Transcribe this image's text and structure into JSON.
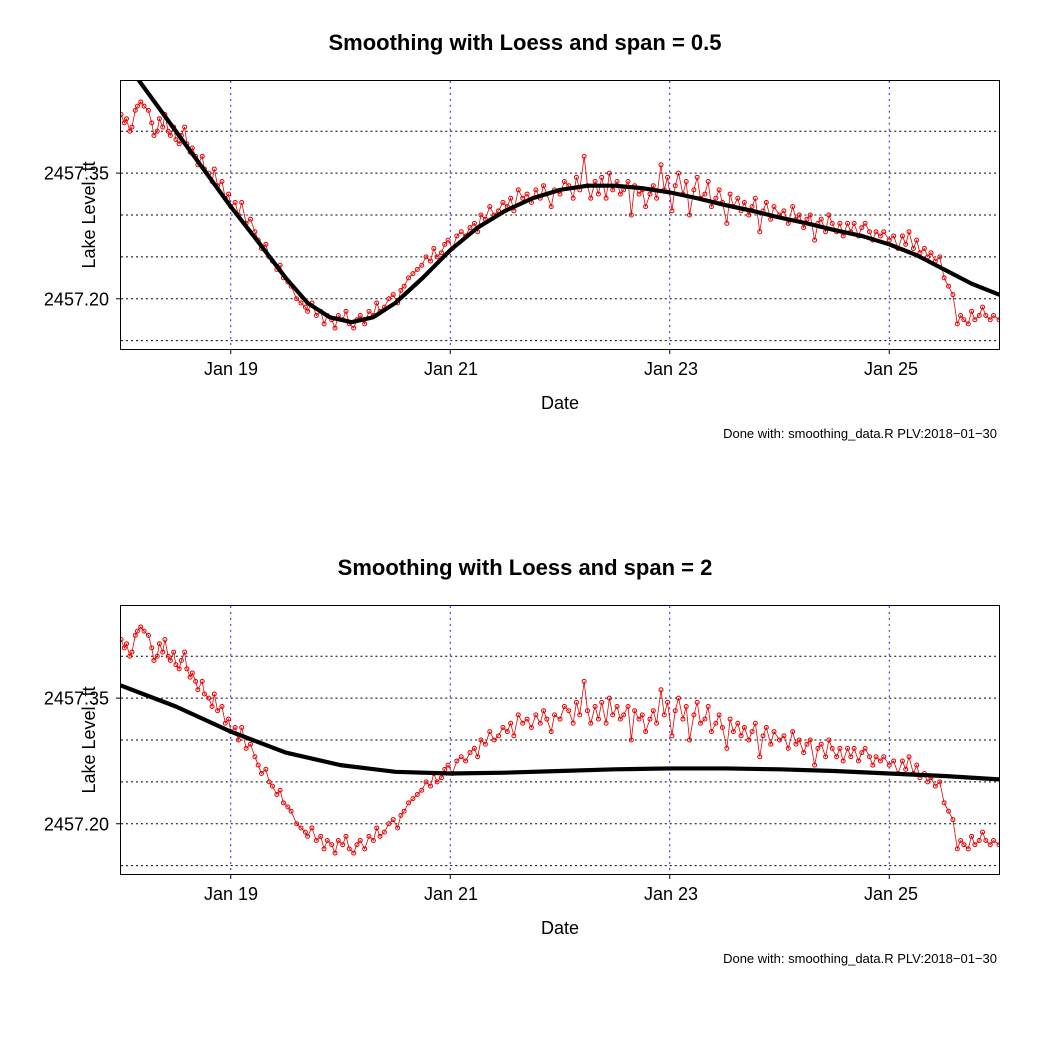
{
  "panels": [
    {
      "title": "Smoothing with Loess and span = 0.5",
      "ylabel": "Lake Level, ft",
      "xlabel": "Date",
      "caption": "Done with: smoothing_data.R   PLV:2018−01−30",
      "smooth_key": "smooth05"
    },
    {
      "title": "Smoothing with Loess and span = 2",
      "ylabel": "Lake Level, ft",
      "xlabel": "Date",
      "caption": "Done with: smoothing_data.R   PLV:2018−01−30",
      "smooth_key": "smooth2"
    }
  ],
  "style": {
    "frame_color": "#000000",
    "background": "#ffffff",
    "hgrid_color": "#000000",
    "hgrid_dash": "2 3",
    "hgrid_width": 0.9,
    "vgrid_color": "#0000ff",
    "vgrid_dash": "2 4",
    "vgrid_width": 0.9,
    "point_stroke": "#e60000",
    "point_fill": "none",
    "point_radius": 2.0,
    "point_stroke_width": 1.0,
    "connector_color": "#e60000",
    "connector_width": 0.8,
    "smooth_color": "#000000",
    "smooth_width": 4.2,
    "tick_len": 5,
    "title_fontsize": 22,
    "label_fontsize": 18,
    "tick_fontsize": 18,
    "caption_fontsize": 13
  },
  "axes": {
    "x_min": 18.0,
    "x_max": 26.0,
    "x_ticks": [
      19,
      21,
      23,
      25
    ],
    "x_tick_labels": [
      "Jan 19",
      "Jan 21",
      "Jan 23",
      "Jan 25"
    ],
    "y_min": 2457.14,
    "y_max": 2457.46,
    "y_ticks": [
      2457.2,
      2457.35
    ],
    "y_tick_labels": [
      "2457.20",
      "2457.35"
    ],
    "y_hgrid": [
      2457.15,
      2457.2,
      2457.25,
      2457.3,
      2457.35,
      2457.4
    ]
  },
  "data": {
    "scatter": [
      [
        18.0,
        2457.42
      ],
      [
        18.03,
        2457.41
      ],
      [
        18.05,
        2457.415
      ],
      [
        18.08,
        2457.4
      ],
      [
        18.1,
        2457.405
      ],
      [
        18.13,
        2457.425
      ],
      [
        18.15,
        2457.43
      ],
      [
        18.18,
        2457.435
      ],
      [
        18.21,
        2457.43
      ],
      [
        18.25,
        2457.425
      ],
      [
        18.28,
        2457.41
      ],
      [
        18.3,
        2457.395
      ],
      [
        18.33,
        2457.4
      ],
      [
        18.35,
        2457.415
      ],
      [
        18.38,
        2457.405
      ],
      [
        18.4,
        2457.42
      ],
      [
        18.43,
        2457.4
      ],
      [
        18.45,
        2457.395
      ],
      [
        18.48,
        2457.405
      ],
      [
        18.5,
        2457.39
      ],
      [
        18.53,
        2457.385
      ],
      [
        18.55,
        2457.395
      ],
      [
        18.58,
        2457.405
      ],
      [
        18.6,
        2457.385
      ],
      [
        18.63,
        2457.375
      ],
      [
        18.65,
        2457.38
      ],
      [
        18.68,
        2457.37
      ],
      [
        18.7,
        2457.36
      ],
      [
        18.74,
        2457.37
      ],
      [
        18.76,
        2457.355
      ],
      [
        18.8,
        2457.35
      ],
      [
        18.83,
        2457.34
      ],
      [
        18.85,
        2457.355
      ],
      [
        18.88,
        2457.335
      ],
      [
        18.92,
        2457.34
      ],
      [
        18.95,
        2457.32
      ],
      [
        18.98,
        2457.325
      ],
      [
        19.0,
        2457.31
      ],
      [
        19.04,
        2457.315
      ],
      [
        19.07,
        2457.3
      ],
      [
        19.1,
        2457.315
      ],
      [
        19.14,
        2457.29
      ],
      [
        19.18,
        2457.295
      ],
      [
        19.22,
        2457.28
      ],
      [
        19.25,
        2457.27
      ],
      [
        19.28,
        2457.26
      ],
      [
        19.32,
        2457.265
      ],
      [
        19.35,
        2457.25
      ],
      [
        19.38,
        2457.245
      ],
      [
        19.42,
        2457.235
      ],
      [
        19.45,
        2457.24
      ],
      [
        19.48,
        2457.225
      ],
      [
        19.52,
        2457.22
      ],
      [
        19.55,
        2457.215
      ],
      [
        19.6,
        2457.2
      ],
      [
        19.64,
        2457.195
      ],
      [
        19.68,
        2457.19
      ],
      [
        19.7,
        2457.185
      ],
      [
        19.74,
        2457.195
      ],
      [
        19.78,
        2457.18
      ],
      [
        19.82,
        2457.185
      ],
      [
        19.85,
        2457.17
      ],
      [
        19.88,
        2457.18
      ],
      [
        19.92,
        2457.175
      ],
      [
        19.95,
        2457.165
      ],
      [
        19.98,
        2457.18
      ],
      [
        20.02,
        2457.175
      ],
      [
        20.05,
        2457.185
      ],
      [
        20.08,
        2457.17
      ],
      [
        20.12,
        2457.165
      ],
      [
        20.15,
        2457.175
      ],
      [
        20.18,
        2457.18
      ],
      [
        20.22,
        2457.17
      ],
      [
        20.26,
        2457.185
      ],
      [
        20.3,
        2457.18
      ],
      [
        20.33,
        2457.195
      ],
      [
        20.36,
        2457.185
      ],
      [
        20.4,
        2457.19
      ],
      [
        20.44,
        2457.2
      ],
      [
        20.48,
        2457.205
      ],
      [
        20.52,
        2457.195
      ],
      [
        20.55,
        2457.21
      ],
      [
        20.58,
        2457.215
      ],
      [
        20.62,
        2457.225
      ],
      [
        20.66,
        2457.23
      ],
      [
        20.7,
        2457.235
      ],
      [
        20.74,
        2457.24
      ],
      [
        20.78,
        2457.25
      ],
      [
        20.82,
        2457.245
      ],
      [
        20.85,
        2457.26
      ],
      [
        20.88,
        2457.25
      ],
      [
        20.92,
        2457.255
      ],
      [
        20.95,
        2457.265
      ],
      [
        20.98,
        2457.27
      ],
      [
        21.02,
        2457.26
      ],
      [
        21.06,
        2457.275
      ],
      [
        21.1,
        2457.28
      ],
      [
        21.14,
        2457.275
      ],
      [
        21.18,
        2457.285
      ],
      [
        21.22,
        2457.29
      ],
      [
        21.25,
        2457.28
      ],
      [
        21.28,
        2457.3
      ],
      [
        21.32,
        2457.295
      ],
      [
        21.36,
        2457.31
      ],
      [
        21.4,
        2457.3
      ],
      [
        21.44,
        2457.305
      ],
      [
        21.48,
        2457.315
      ],
      [
        21.52,
        2457.31
      ],
      [
        21.55,
        2457.32
      ],
      [
        21.58,
        2457.305
      ],
      [
        21.62,
        2457.33
      ],
      [
        21.66,
        2457.32
      ],
      [
        21.7,
        2457.325
      ],
      [
        21.74,
        2457.315
      ],
      [
        21.78,
        2457.33
      ],
      [
        21.82,
        2457.32
      ],
      [
        21.85,
        2457.335
      ],
      [
        21.88,
        2457.325
      ],
      [
        21.92,
        2457.31
      ],
      [
        21.95,
        2457.33
      ],
      [
        22.0,
        2457.325
      ],
      [
        22.04,
        2457.34
      ],
      [
        22.08,
        2457.335
      ],
      [
        22.12,
        2457.32
      ],
      [
        22.15,
        2457.345
      ],
      [
        22.18,
        2457.33
      ],
      [
        22.22,
        2457.37
      ],
      [
        22.25,
        2457.335
      ],
      [
        22.28,
        2457.32
      ],
      [
        22.32,
        2457.34
      ],
      [
        22.35,
        2457.325
      ],
      [
        22.38,
        2457.345
      ],
      [
        22.42,
        2457.32
      ],
      [
        22.45,
        2457.35
      ],
      [
        22.48,
        2457.33
      ],
      [
        22.52,
        2457.34
      ],
      [
        22.55,
        2457.325
      ],
      [
        22.58,
        2457.33
      ],
      [
        22.62,
        2457.34
      ],
      [
        22.65,
        2457.3
      ],
      [
        22.68,
        2457.335
      ],
      [
        22.72,
        2457.325
      ],
      [
        22.75,
        2457.33
      ],
      [
        22.78,
        2457.31
      ],
      [
        22.82,
        2457.325
      ],
      [
        22.85,
        2457.335
      ],
      [
        22.88,
        2457.32
      ],
      [
        22.92,
        2457.36
      ],
      [
        22.95,
        2457.33
      ],
      [
        22.98,
        2457.345
      ],
      [
        23.02,
        2457.305
      ],
      [
        23.05,
        2457.335
      ],
      [
        23.08,
        2457.35
      ],
      [
        23.12,
        2457.325
      ],
      [
        23.15,
        2457.34
      ],
      [
        23.18,
        2457.3
      ],
      [
        23.22,
        2457.33
      ],
      [
        23.25,
        2457.345
      ],
      [
        23.28,
        2457.32
      ],
      [
        23.32,
        2457.325
      ],
      [
        23.35,
        2457.34
      ],
      [
        23.38,
        2457.31
      ],
      [
        23.42,
        2457.32
      ],
      [
        23.45,
        2457.33
      ],
      [
        23.48,
        2457.315
      ],
      [
        23.52,
        2457.29
      ],
      [
        23.55,
        2457.325
      ],
      [
        23.58,
        2457.31
      ],
      [
        23.62,
        2457.32
      ],
      [
        23.65,
        2457.305
      ],
      [
        23.68,
        2457.315
      ],
      [
        23.72,
        2457.3
      ],
      [
        23.75,
        2457.31
      ],
      [
        23.78,
        2457.32
      ],
      [
        23.82,
        2457.28
      ],
      [
        23.85,
        2457.305
      ],
      [
        23.88,
        2457.315
      ],
      [
        23.92,
        2457.295
      ],
      [
        23.95,
        2457.31
      ],
      [
        24.0,
        2457.3
      ],
      [
        24.04,
        2457.305
      ],
      [
        24.08,
        2457.29
      ],
      [
        24.12,
        2457.31
      ],
      [
        24.15,
        2457.295
      ],
      [
        24.18,
        2457.3
      ],
      [
        24.22,
        2457.285
      ],
      [
        24.25,
        2457.295
      ],
      [
        24.28,
        2457.3
      ],
      [
        24.32,
        2457.27
      ],
      [
        24.35,
        2457.29
      ],
      [
        24.38,
        2457.295
      ],
      [
        24.42,
        2457.28
      ],
      [
        24.45,
        2457.3
      ],
      [
        24.48,
        2457.29
      ],
      [
        24.52,
        2457.28
      ],
      [
        24.55,
        2457.29
      ],
      [
        24.58,
        2457.275
      ],
      [
        24.62,
        2457.29
      ],
      [
        24.65,
        2457.28
      ],
      [
        24.68,
        2457.29
      ],
      [
        24.72,
        2457.275
      ],
      [
        24.75,
        2457.285
      ],
      [
        24.78,
        2457.29
      ],
      [
        24.82,
        2457.28
      ],
      [
        24.85,
        2457.27
      ],
      [
        24.88,
        2457.28
      ],
      [
        24.92,
        2457.275
      ],
      [
        24.95,
        2457.28
      ],
      [
        25.0,
        2457.27
      ],
      [
        25.04,
        2457.275
      ],
      [
        25.08,
        2457.26
      ],
      [
        25.12,
        2457.275
      ],
      [
        25.15,
        2457.265
      ],
      [
        25.18,
        2457.28
      ],
      [
        25.22,
        2457.26
      ],
      [
        25.25,
        2457.27
      ],
      [
        25.28,
        2457.255
      ],
      [
        25.32,
        2457.26
      ],
      [
        25.35,
        2457.25
      ],
      [
        25.38,
        2457.255
      ],
      [
        25.42,
        2457.245
      ],
      [
        25.46,
        2457.25
      ],
      [
        25.5,
        2457.225
      ],
      [
        25.54,
        2457.215
      ],
      [
        25.58,
        2457.205
      ],
      [
        25.62,
        2457.17
      ],
      [
        25.65,
        2457.18
      ],
      [
        25.68,
        2457.175
      ],
      [
        25.72,
        2457.17
      ],
      [
        25.75,
        2457.185
      ],
      [
        25.78,
        2457.175
      ],
      [
        25.82,
        2457.18
      ],
      [
        25.85,
        2457.19
      ],
      [
        25.88,
        2457.18
      ],
      [
        25.92,
        2457.175
      ],
      [
        25.95,
        2457.18
      ],
      [
        26.0,
        2457.175
      ]
    ],
    "smooth05": [
      [
        18.0,
        2457.49
      ],
      [
        18.25,
        2457.445
      ],
      [
        18.5,
        2457.4
      ],
      [
        18.75,
        2457.355
      ],
      [
        19.0,
        2457.31
      ],
      [
        19.25,
        2457.268
      ],
      [
        19.5,
        2457.225
      ],
      [
        19.7,
        2457.195
      ],
      [
        19.9,
        2457.178
      ],
      [
        20.1,
        2457.172
      ],
      [
        20.3,
        2457.178
      ],
      [
        20.5,
        2457.195
      ],
      [
        20.75,
        2457.225
      ],
      [
        21.0,
        2457.258
      ],
      [
        21.25,
        2457.285
      ],
      [
        21.5,
        2457.305
      ],
      [
        21.75,
        2457.32
      ],
      [
        22.0,
        2457.33
      ],
      [
        22.25,
        2457.335
      ],
      [
        22.5,
        2457.335
      ],
      [
        22.75,
        2457.332
      ],
      [
        23.0,
        2457.327
      ],
      [
        23.25,
        2457.32
      ],
      [
        23.5,
        2457.312
      ],
      [
        23.75,
        2457.305
      ],
      [
        24.0,
        2457.297
      ],
      [
        24.25,
        2457.29
      ],
      [
        24.5,
        2457.282
      ],
      [
        24.75,
        2457.275
      ],
      [
        25.0,
        2457.265
      ],
      [
        25.25,
        2457.252
      ],
      [
        25.5,
        2457.235
      ],
      [
        25.75,
        2457.218
      ],
      [
        26.0,
        2457.205
      ]
    ],
    "smooth2": [
      [
        18.0,
        2457.365
      ],
      [
        18.5,
        2457.34
      ],
      [
        19.0,
        2457.31
      ],
      [
        19.5,
        2457.285
      ],
      [
        20.0,
        2457.27
      ],
      [
        20.5,
        2457.262
      ],
      [
        21.0,
        2457.26
      ],
      [
        21.5,
        2457.261
      ],
      [
        22.0,
        2457.263
      ],
      [
        22.5,
        2457.265
      ],
      [
        23.0,
        2457.266
      ],
      [
        23.5,
        2457.266
      ],
      [
        24.0,
        2457.265
      ],
      [
        24.5,
        2457.263
      ],
      [
        25.0,
        2457.26
      ],
      [
        25.5,
        2457.257
      ],
      [
        26.0,
        2457.253
      ]
    ]
  }
}
